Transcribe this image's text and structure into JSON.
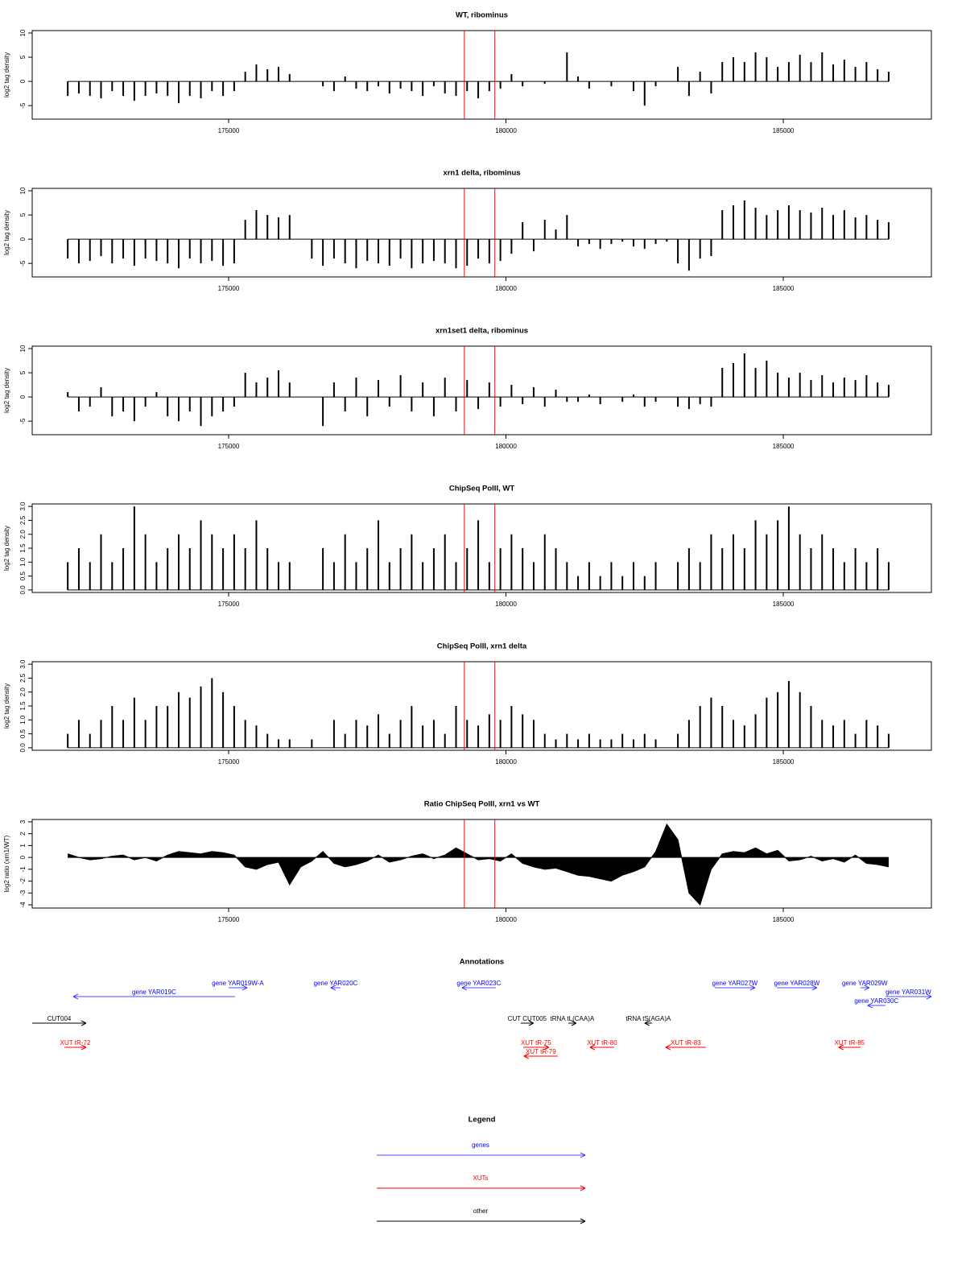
{
  "chart_data": [
    {
      "type": "bar",
      "title": "WT, ribominus",
      "ylabel": "log2 tag density",
      "x": [
        172100,
        172300,
        172500,
        172700,
        172900,
        173100,
        173300,
        173500,
        173700,
        173900,
        174100,
        174300,
        174500,
        174700,
        174900,
        175100,
        175300,
        175500,
        175700,
        175900,
        176100,
        176300,
        176500,
        176700,
        176900,
        177100,
        177300,
        177500,
        177700,
        177900,
        178100,
        178300,
        178500,
        178700,
        178900,
        179100,
        179300,
        179500,
        179700,
        179900,
        180100,
        180300,
        180500,
        180700,
        180900,
        181100,
        181300,
        181500,
        181700,
        181900,
        182100,
        182300,
        182500,
        182700,
        182900,
        183100,
        183300,
        183500,
        183700,
        183900,
        184100,
        184300,
        184500,
        184700,
        184900,
        185100,
        185300,
        185500,
        185700,
        185900,
        186100,
        186300,
        186500,
        186700,
        186900
      ],
      "values": [
        -3,
        -2.5,
        -3,
        -3.5,
        -2,
        -3,
        -4,
        -3,
        -2.5,
        -3,
        -4.5,
        -3,
        -3.5,
        -2,
        -3,
        -2,
        2,
        3.5,
        2.5,
        3,
        1.5,
        0,
        0,
        -1,
        -2,
        1,
        -1.5,
        -2,
        -1,
        -2.5,
        -1.5,
        -2,
        -3,
        -1,
        -2.5,
        -3,
        -2,
        -3.5,
        -2,
        -1.5,
        1.5,
        -1,
        0,
        -0.5,
        0,
        6,
        1,
        -1.5,
        0,
        -1,
        0,
        -2,
        -5,
        -1,
        0,
        3,
        -3,
        2,
        -2.5,
        4,
        5,
        4,
        6,
        5,
        3,
        4,
        5.5,
        4,
        6,
        3.5,
        4.5,
        3,
        4,
        2.5,
        2
      ],
      "color": "#000000",
      "xlim": [
        171459,
        187670
      ],
      "xticks": [
        175000,
        180000,
        185000
      ],
      "ylim": [
        -7.8,
        10.5
      ],
      "yticks": [
        -5,
        0,
        5,
        10
      ],
      "vlines": [
        179250,
        179800
      ],
      "vline_color": "#ff0000"
    },
    {
      "type": "bar",
      "title": "xrn1 delta, ribominus",
      "ylabel": "log2 tag density",
      "x": [
        172100,
        172300,
        172500,
        172700,
        172900,
        173100,
        173300,
        173500,
        173700,
        173900,
        174100,
        174300,
        174500,
        174700,
        174900,
        175100,
        175300,
        175500,
        175700,
        175900,
        176100,
        176300,
        176500,
        176700,
        176900,
        177100,
        177300,
        177500,
        177700,
        177900,
        178100,
        178300,
        178500,
        178700,
        178900,
        179100,
        179300,
        179500,
        179700,
        179900,
        180100,
        180300,
        180500,
        180700,
        180900,
        181100,
        181300,
        181500,
        181700,
        181900,
        182100,
        182300,
        182500,
        182700,
        182900,
        183100,
        183300,
        183500,
        183700,
        183900,
        184100,
        184300,
        184500,
        184700,
        184900,
        185100,
        185300,
        185500,
        185700,
        185900,
        186100,
        186300,
        186500,
        186700,
        186900
      ],
      "values": [
        -4,
        -5,
        -4.5,
        -3.5,
        -5,
        -4,
        -5.5,
        -4,
        -4.5,
        -5,
        -6,
        -4,
        -5,
        -4.5,
        -5.5,
        -5,
        4,
        6,
        5,
        4.5,
        5,
        0,
        -4,
        -5.5,
        -4,
        -5,
        -6,
        -4.5,
        -5,
        -5.5,
        -4,
        -6,
        -5,
        -4.5,
        -5,
        -6,
        -5.5,
        -4,
        -5,
        -4.5,
        -3,
        3.5,
        -2.5,
        4,
        2,
        5,
        -1.5,
        -1,
        -2,
        -1,
        -0.5,
        -1.5,
        -2,
        -1,
        -0.5,
        -5,
        -6.5,
        -4,
        -3.5,
        6,
        7,
        8,
        6.5,
        5,
        6,
        7,
        6,
        5.5,
        6.5,
        5,
        6,
        4.5,
        5,
        4,
        3.5
      ],
      "color": "#000000",
      "xlim": [
        171459,
        187670
      ],
      "xticks": [
        175000,
        180000,
        185000
      ],
      "ylim": [
        -7.8,
        10.5
      ],
      "yticks": [
        -5,
        0,
        5,
        10
      ],
      "vlines": [
        179250,
        179800
      ],
      "vline_color": "#ff0000"
    },
    {
      "type": "bar",
      "title": "xrn1set1 delta, ribominus",
      "ylabel": "log2 tag density",
      "x": [
        172100,
        172300,
        172500,
        172700,
        172900,
        173100,
        173300,
        173500,
        173700,
        173900,
        174100,
        174300,
        174500,
        174700,
        174900,
        175100,
        175300,
        175500,
        175700,
        175900,
        176100,
        176300,
        176500,
        176700,
        176900,
        177100,
        177300,
        177500,
        177700,
        177900,
        178100,
        178300,
        178500,
        178700,
        178900,
        179100,
        179300,
        179500,
        179700,
        179900,
        180100,
        180300,
        180500,
        180700,
        180900,
        181100,
        181300,
        181500,
        181700,
        181900,
        182100,
        182300,
        182500,
        182700,
        182900,
        183100,
        183300,
        183500,
        183700,
        183900,
        184100,
        184300,
        184500,
        184700,
        184900,
        185100,
        185300,
        185500,
        185700,
        185900,
        186100,
        186300,
        186500,
        186700,
        186900
      ],
      "values": [
        1,
        -3,
        -2,
        2,
        -4,
        -3,
        -5,
        -2,
        1,
        -4,
        -5,
        -3,
        -6,
        -4,
        -3,
        -2,
        5,
        3,
        4,
        5.5,
        3,
        0,
        0,
        -6,
        3,
        -3,
        4,
        -4,
        3.5,
        -2,
        4.5,
        -3,
        3,
        -4,
        4,
        -3,
        3.5,
        -2.5,
        3,
        -2,
        2.5,
        -1.5,
        2,
        -2,
        1.5,
        -1,
        -1,
        0.5,
        -1.5,
        0,
        -1,
        0.5,
        -2,
        -1,
        0,
        -2,
        -2.5,
        -1.5,
        -2,
        6,
        7,
        9,
        6,
        7.5,
        5,
        4,
        5,
        3.5,
        4.5,
        3,
        4,
        3.5,
        4.5,
        3,
        2.5
      ],
      "color": "#000000",
      "xlim": [
        171459,
        187670
      ],
      "xticks": [
        175000,
        180000,
        185000
      ],
      "ylim": [
        -7.8,
        10.5
      ],
      "yticks": [
        -5,
        0,
        5,
        10
      ],
      "vlines": [
        179250,
        179800
      ],
      "vline_color": "#ff0000"
    },
    {
      "type": "bar",
      "title": "ChipSeq PolII, WT",
      "ylabel": "log2 tag density",
      "x": [
        172100,
        172300,
        172500,
        172700,
        172900,
        173100,
        173300,
        173500,
        173700,
        173900,
        174100,
        174300,
        174500,
        174700,
        174900,
        175100,
        175300,
        175500,
        175700,
        175900,
        176100,
        176300,
        176500,
        176700,
        176900,
        177100,
        177300,
        177500,
        177700,
        177900,
        178100,
        178300,
        178500,
        178700,
        178900,
        179100,
        179300,
        179500,
        179700,
        179900,
        180100,
        180300,
        180500,
        180700,
        180900,
        181100,
        181300,
        181500,
        181700,
        181900,
        182100,
        182300,
        182500,
        182700,
        182900,
        183100,
        183300,
        183500,
        183700,
        183900,
        184100,
        184300,
        184500,
        184700,
        184900,
        185100,
        185300,
        185500,
        185700,
        185900,
        186100,
        186300,
        186500,
        186700,
        186900
      ],
      "values": [
        1,
        1.5,
        1,
        2,
        1,
        1.5,
        3,
        2,
        1,
        1.5,
        2,
        1.5,
        2.5,
        2,
        1.5,
        2,
        1.5,
        2.5,
        1.5,
        1,
        1,
        0,
        0,
        1.5,
        1,
        2,
        1,
        1.5,
        2.5,
        1,
        1.5,
        2,
        1,
        1.5,
        2,
        1,
        1.5,
        2.5,
        1,
        1.5,
        2,
        1.5,
        1,
        2,
        1.5,
        1,
        0.5,
        1,
        0.5,
        1,
        0.5,
        1,
        0.5,
        1,
        0,
        1,
        1.5,
        1,
        2,
        1.5,
        2,
        1.5,
        2.5,
        2,
        2.5,
        3,
        2,
        1.5,
        2,
        1.5,
        1,
        1.5,
        1,
        1.5,
        1
      ],
      "color": "#000000",
      "xlim": [
        171459,
        187670
      ],
      "xticks": [
        175000,
        180000,
        185000
      ],
      "ylim": [
        -0.09,
        3.09
      ],
      "yticks": [
        {
          "value": 0,
          "label": "0.0"
        },
        0.5,
        {
          "value": 1,
          "label": "1.0"
        },
        1.5,
        {
          "value": 2,
          "label": "2.0"
        },
        2.5,
        {
          "value": 3,
          "label": "3.0"
        }
      ],
      "vlines": [
        179250,
        179800
      ],
      "vline_color": "#ff0000"
    },
    {
      "type": "bar",
      "title": "ChipSeq PolII, xrn1 delta",
      "ylabel": "log2 tag density",
      "x": [
        172100,
        172300,
        172500,
        172700,
        172900,
        173100,
        173300,
        173500,
        173700,
        173900,
        174100,
        174300,
        174500,
        174700,
        174900,
        175100,
        175300,
        175500,
        175700,
        175900,
        176100,
        176300,
        176500,
        176700,
        176900,
        177100,
        177300,
        177500,
        177700,
        177900,
        178100,
        178300,
        178500,
        178700,
        178900,
        179100,
        179300,
        179500,
        179700,
        179900,
        180100,
        180300,
        180500,
        180700,
        180900,
        181100,
        181300,
        181500,
        181700,
        181900,
        182100,
        182300,
        182500,
        182700,
        182900,
        183100,
        183300,
        183500,
        183700,
        183900,
        184100,
        184300,
        184500,
        184700,
        184900,
        185100,
        185300,
        185500,
        185700,
        185900,
        186100,
        186300,
        186500,
        186700,
        186900
      ],
      "values": [
        0.5,
        1,
        0.5,
        1,
        1.5,
        1,
        1.8,
        1,
        1.5,
        1.5,
        2,
        1.8,
        2.2,
        2.5,
        2,
        1.5,
        1,
        0.8,
        0.5,
        0.3,
        0.3,
        0,
        0.3,
        0,
        1,
        0.5,
        1,
        0.8,
        1.2,
        0.5,
        1,
        1.5,
        0.8,
        1,
        0.5,
        1.5,
        1,
        0.8,
        1.2,
        1,
        1.5,
        1.2,
        1,
        0.5,
        0.3,
        0.5,
        0.3,
        0.5,
        0.3,
        0.3,
        0.5,
        0.3,
        0.5,
        0.3,
        0,
        0.5,
        1,
        1.5,
        1.8,
        1.5,
        1,
        0.8,
        1.2,
        1.8,
        2,
        2.4,
        2,
        1.5,
        1,
        0.8,
        1,
        0.5,
        1,
        0.8,
        0.5
      ],
      "color": "#000000",
      "xlim": [
        171459,
        187670
      ],
      "xticks": [
        175000,
        180000,
        185000
      ],
      "ylim": [
        -0.09,
        3.09
      ],
      "yticks": [
        {
          "value": 0,
          "label": "0.0"
        },
        0.5,
        {
          "value": 1,
          "label": "1.0"
        },
        1.5,
        {
          "value": 2,
          "label": "2.0"
        },
        2.5,
        {
          "value": 3,
          "label": "3.0"
        }
      ],
      "vlines": [
        179250,
        179800
      ],
      "vline_color": "#ff0000"
    },
    {
      "type": "area",
      "title": "Ratio ChipSeq PolII, xrn1 vs WT",
      "ylabel": "log2 ratio (xrn1/WT)",
      "x": [
        172100,
        172300,
        172500,
        172700,
        172900,
        173100,
        173300,
        173500,
        173700,
        173900,
        174100,
        174300,
        174500,
        174700,
        174900,
        175100,
        175300,
        175500,
        175700,
        175900,
        176100,
        176300,
        176500,
        176700,
        176900,
        177100,
        177300,
        177500,
        177700,
        177900,
        178100,
        178300,
        178500,
        178700,
        178900,
        179100,
        179300,
        179500,
        179700,
        179900,
        180100,
        180300,
        180500,
        180700,
        180900,
        181100,
        181300,
        181500,
        181700,
        181900,
        182100,
        182300,
        182500,
        182700,
        182900,
        183100,
        183300,
        183500,
        183700,
        183900,
        184100,
        184300,
        184500,
        184700,
        184900,
        185100,
        185300,
        185500,
        185700,
        185900,
        186100,
        186300,
        186500,
        186700,
        186900
      ],
      "values": [
        0.3,
        0,
        -0.2,
        -0.1,
        0.1,
        0.2,
        -0.2,
        0,
        -0.3,
        0.2,
        0.5,
        0.4,
        0.3,
        0.5,
        0.4,
        0.2,
        -0.8,
        -1,
        -0.6,
        -0.4,
        -2.3,
        -0.8,
        -0.3,
        0.5,
        -0.5,
        -0.8,
        -0.6,
        -0.3,
        0.2,
        -0.4,
        -0.2,
        0.1,
        0.3,
        -0.1,
        0.2,
        0.8,
        0.3,
        -0.2,
        -0.1,
        -0.3,
        0.3,
        -0.5,
        -0.8,
        -1,
        -0.9,
        -1.2,
        -1.5,
        -1.6,
        -1.8,
        -2,
        -1.5,
        -1.2,
        -0.8,
        0.5,
        2.8,
        1.5,
        -3,
        -4,
        -1,
        0.3,
        0.5,
        0.4,
        0.8,
        0.3,
        0.6,
        -0.3,
        -0.2,
        0.1,
        -0.3,
        -0.1,
        -0.4,
        0.2,
        -0.5,
        -0.6,
        -0.8
      ],
      "color": "#000000",
      "xlim": [
        171459,
        187670
      ],
      "xticks": [
        175000,
        180000,
        185000
      ],
      "ylim": [
        -4.27,
        3.2
      ],
      "yticks": [
        -4,
        -3,
        -2,
        -1,
        0,
        1,
        2,
        3
      ],
      "vlines": [
        179250,
        179800
      ],
      "vline_color": "#ff0000"
    }
  ],
  "annotations": {
    "title": "Annotations",
    "features": [
      {
        "label": "gene YAR019W-A",
        "start": 175000,
        "end": 175334,
        "strand": "+",
        "color": "#0000ff"
      },
      {
        "label": "gene YAR019C",
        "start": 172199,
        "end": 175116,
        "strand": "-",
        "color": "#0000ff"
      },
      {
        "label": "gene YAR020C",
        "start": 176842,
        "end": 177016,
        "strand": "-",
        "color": "#0000ff"
      },
      {
        "label": "gene YAR023C",
        "start": 179207,
        "end": 179816,
        "strand": "-",
        "color": "#0000ff"
      },
      {
        "label": "gene YAR027W",
        "start": 183764,
        "end": 184490,
        "strand": "+",
        "color": "#0000ff"
      },
      {
        "label": "gene YAR028W",
        "start": 184881,
        "end": 185606,
        "strand": "+",
        "color": "#0000ff"
      },
      {
        "label": "gene YAR029W",
        "start": 186390,
        "end": 186549,
        "strand": "+",
        "color": "#0000ff"
      },
      {
        "label": "gene YAR031W",
        "start": 186840,
        "end": 187670,
        "strand": "+",
        "color": "#0000ff"
      },
      {
        "label": "gene YAR030C",
        "start": 186520,
        "end": 186840,
        "strand": "-",
        "color": "#0000ff"
      },
      {
        "label": "tRNA tL(CAA)A",
        "start": 181123,
        "end": 181268,
        "strand": "+",
        "color": "#000000"
      },
      {
        "label": "tRNA tS(AGA)A",
        "start": 182501,
        "end": 182632,
        "strand": "-",
        "color": "#000000"
      },
      {
        "label": "CUT004",
        "start": 171459,
        "end": 172431,
        "strand": "+",
        "color": "#000000"
      },
      {
        "label": "CUT CUT005",
        "start": 180266,
        "end": 180498,
        "strand": "+",
        "color": "#000000"
      },
      {
        "label": "XUT tR-72",
        "start": 172040,
        "end": 172431,
        "strand": "+",
        "color": "#ff0000"
      },
      {
        "label": "XUT tR-75",
        "start": 180310,
        "end": 180774,
        "strand": "+",
        "color": "#ff0000"
      },
      {
        "label": "XUT tR-79",
        "start": 180324,
        "end": 180934,
        "strand": "-",
        "color": "#ff0000"
      },
      {
        "label": "XUT tR-80",
        "start": 181515,
        "end": 181950,
        "strand": "-",
        "color": "#ff0000"
      },
      {
        "label": "XUT tR-83",
        "start": 182879,
        "end": 183604,
        "strand": "-",
        "color": "#ff0000"
      },
      {
        "label": "XUT tR-85",
        "start": 185998,
        "end": 186390,
        "strand": "-",
        "color": "#ff0000"
      }
    ]
  },
  "legend": {
    "title": "Legend",
    "items": [
      {
        "label": "genes",
        "color": "#0000ff"
      },
      {
        "label": "XUTs",
        "color": "#ff0000"
      },
      {
        "label": "other",
        "color": "#000000"
      }
    ]
  }
}
